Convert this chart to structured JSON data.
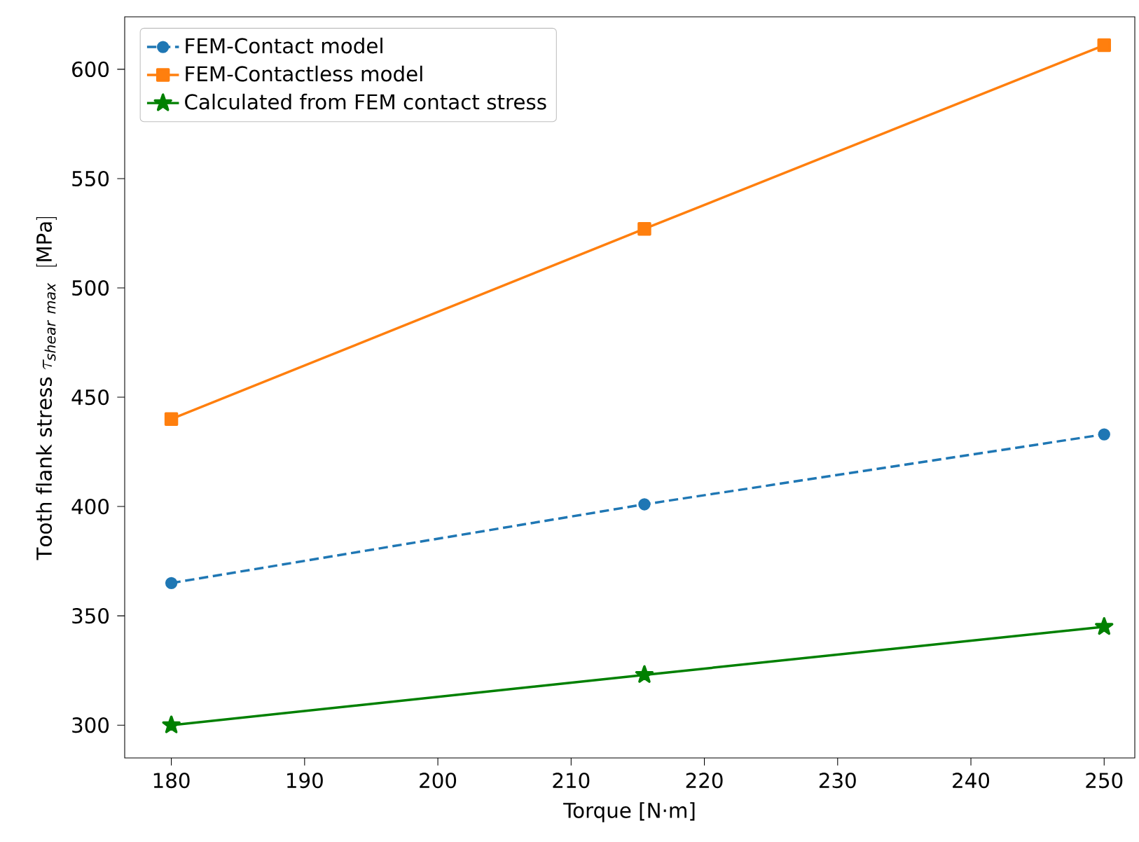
{
  "chart_data": {
    "type": "line",
    "xlabel": "Torque  [N·m]",
    "ylabel": "\\mathrm{Tooth\\ flank\\ stress}\\ \\tau_{\\mathit{shear\\ max}}\\ \\ [\\mathrm{MPa}]",
    "x": [
      180,
      215.5,
      250
    ],
    "series": [
      {
        "name": "FEM-Contact model",
        "color": "#1f77b4",
        "values": [
          365,
          401,
          433
        ],
        "marker": "circle",
        "line_style": "dashed"
      },
      {
        "name": "FEM-Contactless model",
        "color": "#ff7f0e",
        "values": [
          440,
          527,
          611
        ],
        "marker": "square",
        "line_style": "solid"
      },
      {
        "name": "Calculated from FEM contact stress",
        "color": "#008000",
        "values": [
          300,
          323,
          345
        ],
        "marker": "star",
        "line_style": "solid"
      }
    ],
    "xlim": [
      176.5,
      252.3
    ],
    "ylim": [
      285,
      624
    ],
    "xticks": [
      180,
      190,
      200,
      210,
      220,
      230,
      240,
      250
    ],
    "yticks": [
      300,
      350,
      400,
      450,
      500,
      550,
      600
    ],
    "grid": false,
    "legend": "top left"
  }
}
